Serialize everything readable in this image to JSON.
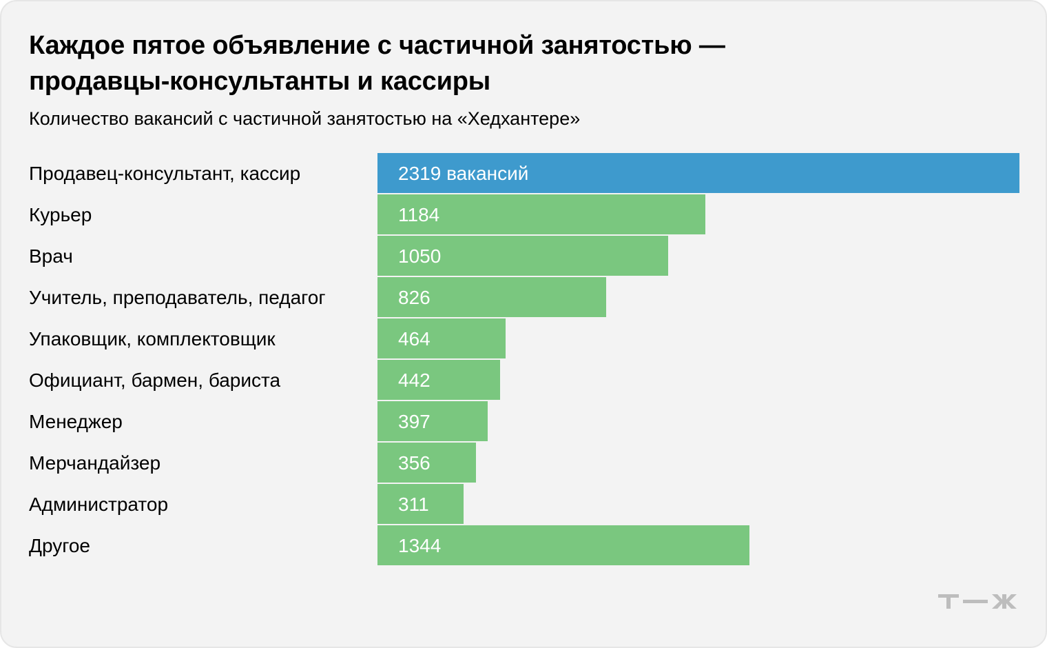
{
  "title": "Каждое пятое объявление с частичной занятостью — продавцы-консультанты и кассиры",
  "subtitle": "Количество вакансий с частичной занятостью на «Хедхантере»",
  "logo": "т—ж",
  "colors": {
    "highlight": "#3e9acd",
    "bar": "#7ac77f",
    "background": "#f3f3f3"
  },
  "chart_data": {
    "type": "bar",
    "orientation": "horizontal",
    "categories": [
      "Продавец-консультант, кассир",
      "Курьер",
      "Врач",
      "Учитель, преподаватель, педагог",
      "Упаковщик, комплектовщик",
      "Официант, бармен, бариста",
      "Менеджер",
      "Мерчандайзер",
      "Администратор",
      "Другое"
    ],
    "values": [
      2319,
      1184,
      1050,
      826,
      464,
      442,
      397,
      356,
      311,
      1344
    ],
    "data_labels": [
      "2319 вакансий",
      "1184",
      "1050",
      "826",
      "464",
      "442",
      "397",
      "356",
      "311",
      "1344"
    ],
    "highlight_index": 0,
    "xlim": [
      0,
      2319
    ],
    "grid": false,
    "legend": "none"
  }
}
